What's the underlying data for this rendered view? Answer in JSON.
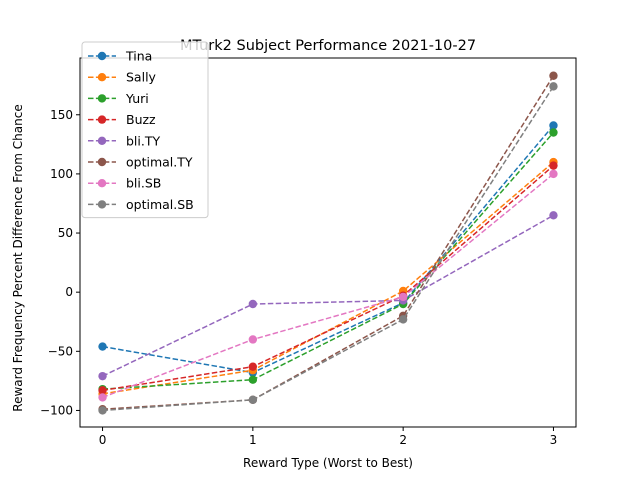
{
  "chart_data": {
    "type": "line",
    "title": "MTurk2 Subject Performance 2021-10-27",
    "xlabel": "Reward Type (Worst to Best)",
    "ylabel": "Reward Frequency Percent Difference From Chance",
    "x": [
      0,
      1,
      2,
      3
    ],
    "x_ticks": [
      "0",
      "1",
      "2",
      "3"
    ],
    "y_ticks": [
      "−100",
      "−50",
      "0",
      "50",
      "100",
      "150"
    ],
    "y_tick_values": [
      -100,
      -50,
      0,
      50,
      100,
      150
    ],
    "xlim": [
      -0.15,
      3.15
    ],
    "ylim": [
      -114,
      198
    ],
    "grid": false,
    "legend_position": "top-left",
    "series": [
      {
        "name": "Tina",
        "color": "#1f77b4",
        "values": [
          -46,
          -68,
          -9,
          141
        ]
      },
      {
        "name": "Sally",
        "color": "#ff7f0e",
        "values": [
          -86,
          -66,
          1,
          110
        ]
      },
      {
        "name": "Yuri",
        "color": "#2ca02c",
        "values": [
          -82,
          -74,
          -10,
          135
        ]
      },
      {
        "name": "Buzz",
        "color": "#d62728",
        "values": [
          -83,
          -63,
          -3,
          107
        ]
      },
      {
        "name": "bli.TY",
        "color": "#9467bd",
        "values": [
          -71,
          -10,
          -7,
          65
        ]
      },
      {
        "name": "optimal.TY",
        "color": "#8c564b",
        "values": [
          -99,
          -91,
          -20,
          183
        ]
      },
      {
        "name": "bli.SB",
        "color": "#e377c2",
        "values": [
          -89,
          -40,
          -4,
          100
        ]
      },
      {
        "name": "optimal.SB",
        "color": "#7f7f7f",
        "values": [
          -100,
          -91,
          -23,
          174
        ]
      }
    ]
  }
}
